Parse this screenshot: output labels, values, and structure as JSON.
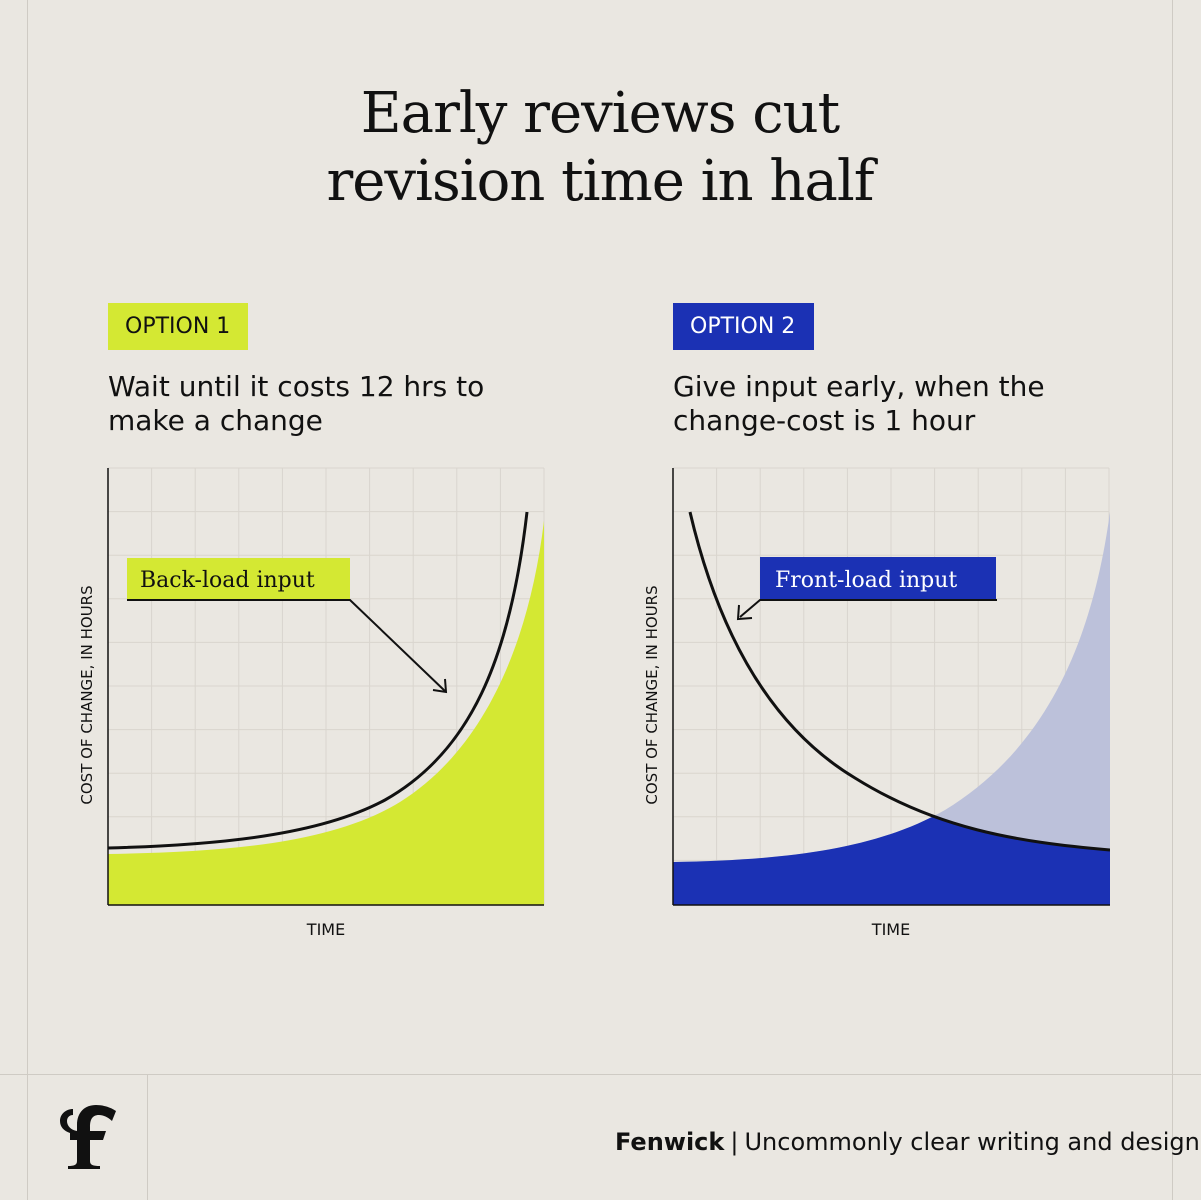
{
  "title": {
    "line1": "Early reviews cut",
    "line2": "revision time in half"
  },
  "options": [
    {
      "tag": "OPTION 1",
      "desc_line1": "Wait until it costs 12 hrs to",
      "desc_line2": "make a change"
    },
    {
      "tag": "OPTION 2",
      "desc_line1": "Give input early, when the",
      "desc_line2": "change-cost is 1 hour"
    }
  ],
  "colors": {
    "lime": "#d4e833",
    "blue": "#1b31b4",
    "lavender": "#bcc1da",
    "ink": "#111111",
    "grid": "#d9d5ce"
  },
  "chart_data": [
    {
      "type": "area",
      "xlabel": "TIME",
      "ylabel": "COST OF CHANGE, IN HOURS",
      "grid": true,
      "annotation": "Back-load input",
      "series": [
        {
          "curve": "exponential rising",
          "style": "line"
        },
        {
          "curve": "exponential rising",
          "style": "filled area",
          "color": "#d4e833"
        }
      ]
    },
    {
      "type": "area",
      "xlabel": "TIME",
      "ylabel": "COST OF CHANGE, IN HOURS",
      "grid": true,
      "annotation": "Front-load input",
      "series": [
        {
          "curve": "exponential falling",
          "style": "line"
        },
        {
          "curve": "exponential rising",
          "style": "filled area",
          "color": "#bcc1da",
          "overlap_color": "#1b31b4"
        }
      ]
    }
  ],
  "footer": {
    "brand": "Fenwick",
    "separator": "|",
    "tagline": "Uncommonly clear writing and design"
  },
  "logo_icon": "fenwick-f-logo-icon"
}
